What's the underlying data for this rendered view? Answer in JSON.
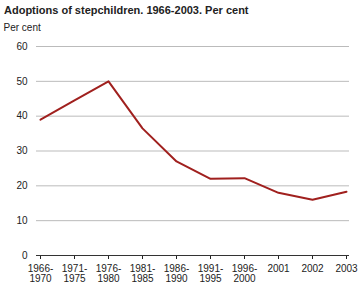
{
  "chart_data": {
    "type": "line",
    "title": "Adoptions of stepchildren. 1966-2003. Per cent",
    "y_label": "Per cent",
    "categories": [
      "1966-1970",
      "1971-1975",
      "1976-1980",
      "1981-1985",
      "1986-1990",
      "1991-1995",
      "1996-2000",
      "2001",
      "2002",
      "2003"
    ],
    "values": [
      39,
      44.5,
      50,
      36.5,
      27,
      22,
      22.2,
      18,
      16,
      18.3
    ],
    "color": "#a0201e",
    "ylim": [
      0,
      60
    ],
    "yticks": [
      0,
      10,
      20,
      30,
      40,
      50,
      60
    ],
    "grid": true
  }
}
